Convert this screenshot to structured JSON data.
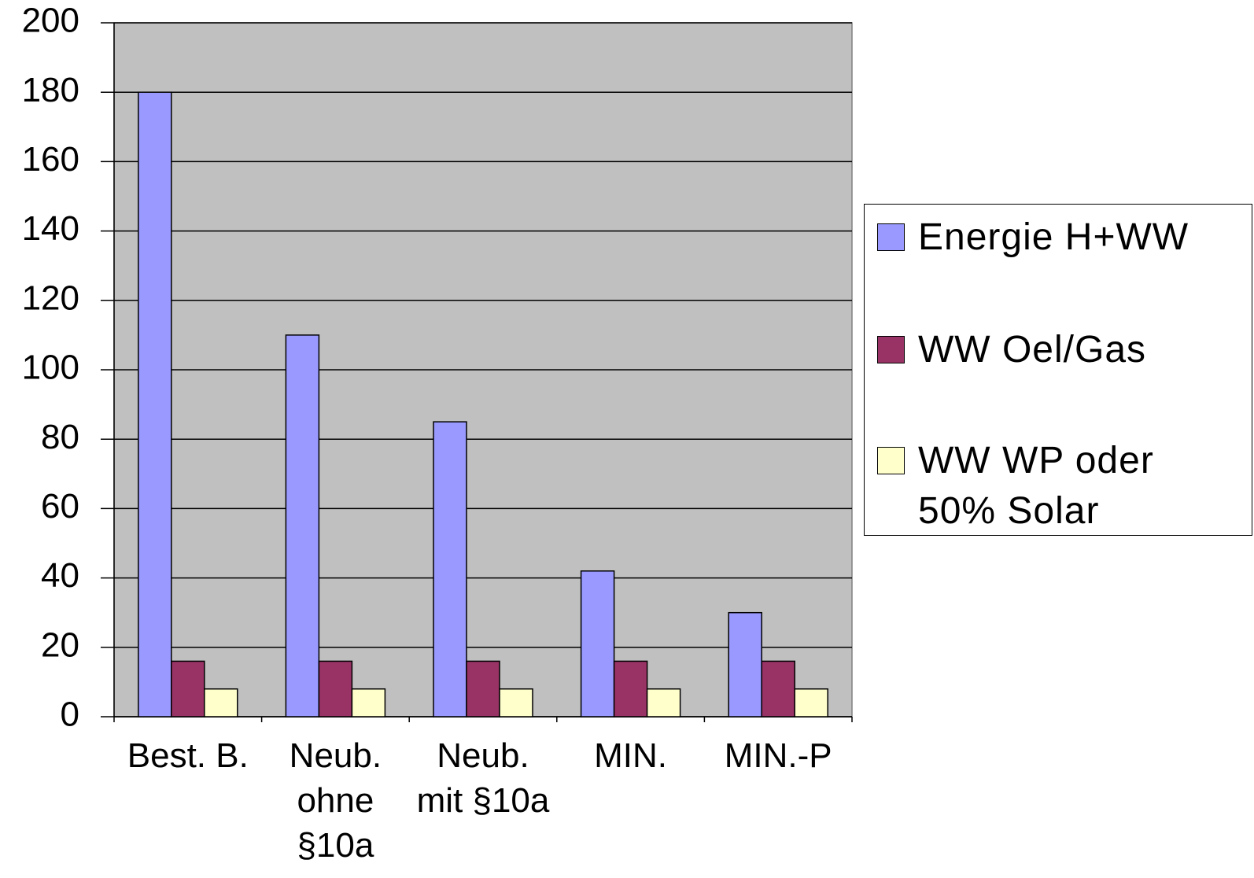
{
  "chart_data": {
    "type": "bar",
    "categories": [
      "Best. B.",
      "Neub. ohne §10a",
      "Neub. mit §10a",
      "MIN.",
      "MIN.-P"
    ],
    "series": [
      {
        "name": "Energie H+WW",
        "color": "#9999ff",
        "values": [
          180,
          110,
          85,
          42,
          30
        ]
      },
      {
        "name": "WW Oel/Gas",
        "color": "#993366",
        "values": [
          16,
          16,
          16,
          16,
          16
        ]
      },
      {
        "name": "WW WP oder 50% Solar",
        "color": "#ffffcc",
        "values": [
          8,
          8,
          8,
          8,
          8
        ]
      }
    ],
    "ylim": [
      0,
      200
    ],
    "yticks": [
      0,
      20,
      40,
      60,
      80,
      100,
      120,
      140,
      160,
      180,
      200
    ],
    "grid": true,
    "legend": "right",
    "background": "#c0c0c0"
  }
}
